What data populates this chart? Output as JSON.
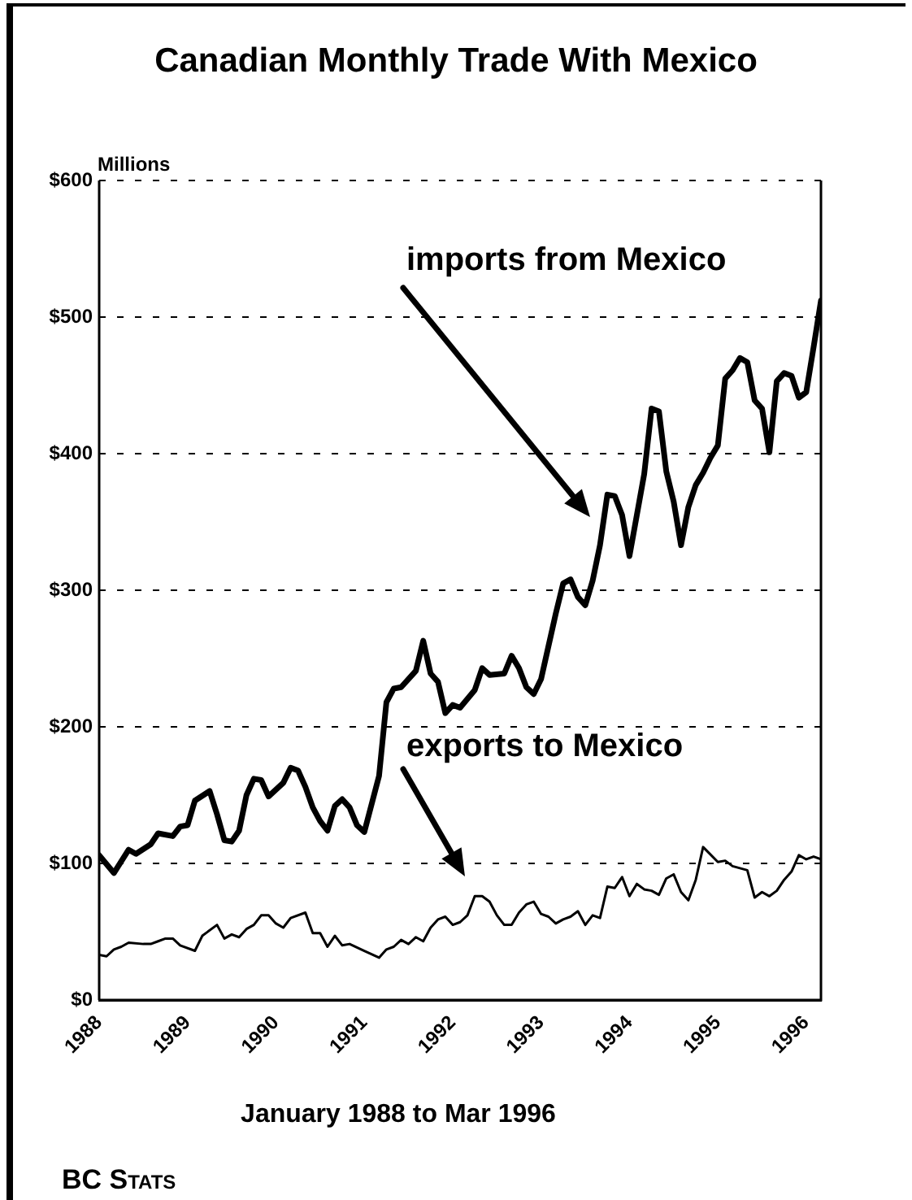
{
  "chart_data": {
    "type": "line",
    "title": "Canadian Monthly Trade With Mexico",
    "ylabel": "Millions",
    "xlabel": "January 1988 to Mar 1996",
    "xlim": [
      "1988-01",
      "1996-03"
    ],
    "xticks": [
      "1988",
      "1989",
      "1990",
      "1991",
      "1992",
      "1993",
      "1994",
      "1995",
      "1996"
    ],
    "ylim": [
      0,
      600
    ],
    "yticks": [
      {
        "value": 0,
        "label": "$0"
      },
      {
        "value": 100,
        "label": "$100"
      },
      {
        "value": 200,
        "label": "$200"
      },
      {
        "value": 300,
        "label": "$300"
      },
      {
        "value": 400,
        "label": "$400"
      },
      {
        "value": 500,
        "label": "$500"
      },
      {
        "value": 600,
        "label": "$600"
      }
    ],
    "grid": "y",
    "legend": false,
    "series": [
      {
        "color": "#000000",
        "x": [
          "1988-01",
          "1988-03",
          "1988-05",
          "1988-06",
          "1988-08",
          "1988-09",
          "1988-11",
          "1988-12",
          "1989-01",
          "1989-02",
          "1989-04",
          "1989-05",
          "1989-06",
          "1989-07",
          "1989-08",
          "1989-09",
          "1989-10",
          "1989-11",
          "1989-12",
          "1990-02",
          "1990-03",
          "1990-04",
          "1990-05",
          "1990-06",
          "1990-07",
          "1990-08",
          "1990-09",
          "1990-10",
          "1990-11",
          "1990-12",
          "1991-01",
          "1991-03",
          "1991-04",
          "1991-05",
          "1991-06",
          "1991-08",
          "1991-09",
          "1991-10",
          "1991-11",
          "1991-12",
          "1992-01",
          "1992-02",
          "1992-04",
          "1992-05",
          "1992-06",
          "1992-08",
          "1992-09",
          "1992-10",
          "1992-11",
          "1992-12",
          "1993-01",
          "1993-02",
          "1993-03",
          "1993-04",
          "1993-05",
          "1993-06",
          "1993-07",
          "1993-08",
          "1993-09",
          "1993-10",
          "1993-11",
          "1993-12",
          "1994-01",
          "1994-02",
          "1994-03",
          "1994-04",
          "1994-05",
          "1994-06",
          "1994-07",
          "1994-08",
          "1994-09",
          "1994-10",
          "1994-11",
          "1994-12",
          "1995-01",
          "1995-02",
          "1995-03",
          "1995-04",
          "1995-05",
          "1995-06",
          "1995-07",
          "1995-08",
          "1995-09",
          "1995-10",
          "1995-11",
          "1995-12",
          "1996-01",
          "1996-02",
          "1996-03"
        ],
        "values": [
          106,
          93,
          110,
          107,
          114,
          122,
          120,
          127,
          128,
          146,
          153,
          136,
          117,
          116,
          124,
          150,
          162,
          161,
          149,
          159,
          170,
          168,
          156,
          141,
          131,
          124,
          142,
          147,
          141,
          128,
          123,
          164,
          218,
          228,
          229,
          241,
          263,
          239,
          233,
          210,
          216,
          214,
          227,
          243,
          238,
          239,
          252,
          243,
          229,
          224,
          235,
          259,
          283,
          305,
          308,
          295,
          289,
          307,
          333,
          370,
          369,
          355,
          325,
          355,
          385,
          433,
          431,
          387,
          365,
          333,
          361,
          377,
          386,
          397,
          406,
          455,
          461,
          470,
          467,
          439,
          433,
          401,
          453,
          459,
          457,
          441,
          445,
          478,
          512
        ]
      },
      {
        "color": "#000000",
        "x": [
          "1988-01",
          "1988-02",
          "1988-03",
          "1988-04",
          "1988-05",
          "1988-07",
          "1988-08",
          "1988-09",
          "1988-10",
          "1988-11",
          "1988-12",
          "1989-02",
          "1989-03",
          "1989-05",
          "1989-06",
          "1989-07",
          "1989-08",
          "1989-09",
          "1989-10",
          "1989-11",
          "1989-12",
          "1990-01",
          "1990-02",
          "1990-03",
          "1990-05",
          "1990-06",
          "1990-07",
          "1990-08",
          "1990-09",
          "1990-10",
          "1990-11",
          "1991-01",
          "1991-03",
          "1991-04",
          "1991-05",
          "1991-06",
          "1991-07",
          "1991-08",
          "1991-09",
          "1991-10",
          "1991-11",
          "1991-12",
          "1992-01",
          "1992-02",
          "1992-03",
          "1992-04",
          "1992-05",
          "1992-06",
          "1992-07",
          "1992-08",
          "1992-09",
          "1992-10",
          "1992-11",
          "1992-12",
          "1993-01",
          "1993-02",
          "1993-03",
          "1993-04",
          "1993-05",
          "1993-06",
          "1993-07",
          "1993-08",
          "1993-09",
          "1993-10",
          "1993-11",
          "1993-12",
          "1994-01",
          "1994-02",
          "1994-03",
          "1994-04",
          "1994-05",
          "1994-06",
          "1994-07",
          "1994-08",
          "1994-09",
          "1994-10",
          "1994-11",
          "1995-01",
          "1995-02",
          "1995-03",
          "1995-05",
          "1995-06",
          "1995-07",
          "1995-08",
          "1995-09",
          "1995-10",
          "1995-11",
          "1995-12",
          "1996-01",
          "1996-02",
          "1996-03"
        ],
        "values": [
          33,
          32,
          37,
          39,
          42,
          41,
          41,
          43,
          45,
          45,
          40,
          36,
          47,
          55,
          45,
          48,
          46,
          52,
          55,
          62,
          62,
          56,
          53,
          60,
          64,
          49,
          49,
          39,
          47,
          40,
          41,
          36,
          31,
          37,
          39,
          44,
          41,
          46,
          43,
          53,
          59,
          61,
          55,
          57,
          62,
          76,
          76,
          72,
          62,
          55,
          55,
          64,
          70,
          72,
          63,
          61,
          56,
          59,
          61,
          65,
          55,
          62,
          60,
          83,
          82,
          90,
          76,
          85,
          81,
          80,
          77,
          89,
          92,
          79,
          73,
          88,
          112,
          101,
          102,
          98,
          95,
          75,
          79,
          76,
          80,
          88,
          94,
          106,
          103,
          105,
          103
        ]
      }
    ],
    "annotations": [
      "imports from Mexico",
      "exports to Mexico",
      "BC Stats"
    ]
  }
}
